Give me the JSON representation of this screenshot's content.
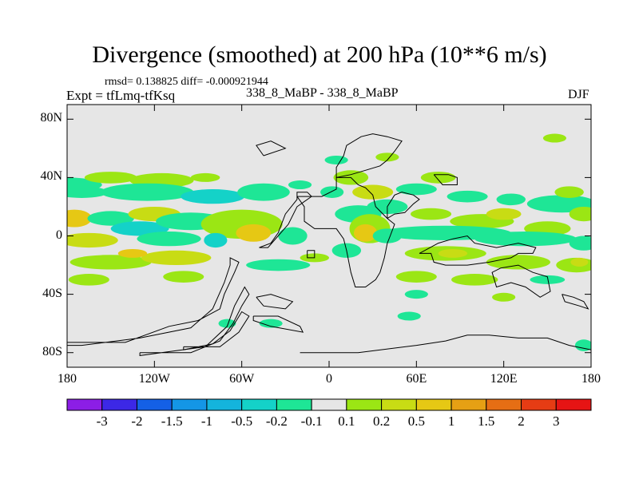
{
  "title": "Divergence (smoothed) at 200 hPa (10**6 m/s)",
  "stats_text": "rmsd= 0.138825 diff= -0.000921944",
  "expt_text": "Expt = tfLmq-tfKsq",
  "center_text": "338_8_MaBP - 338_8_MaBP",
  "season": "DJF",
  "map": {
    "projection": "cylindrical equidistant",
    "lon_range": [
      -180,
      180
    ],
    "lat_range": [
      -90,
      90
    ],
    "lat_ticks": [
      {
        "value": 80,
        "label": "80N"
      },
      {
        "value": 40,
        "label": "40N"
      },
      {
        "value": 0,
        "label": "0"
      },
      {
        "value": -40,
        "label": "40S"
      },
      {
        "value": -80,
        "label": "80S"
      }
    ],
    "lon_ticks": [
      {
        "value": -180,
        "label": "180"
      },
      {
        "value": -120,
        "label": "120W"
      },
      {
        "value": -60,
        "label": "60W"
      },
      {
        "value": 0,
        "label": "0"
      },
      {
        "value": 60,
        "label": "60E"
      },
      {
        "value": 120,
        "label": "120E"
      },
      {
        "value": 180,
        "label": "180"
      }
    ],
    "background_color": "#e6e6e6",
    "coastline_color": "#000000"
  },
  "colorbar": {
    "colors": [
      "#8c1ee6",
      "#3c28e6",
      "#1460e6",
      "#1496e6",
      "#14b4dc",
      "#14d2c8",
      "#1ee696",
      "#e6e6e6",
      "#9be614",
      "#c8dc14",
      "#e6c814",
      "#e6a014",
      "#e66e14",
      "#e63c14",
      "#e61414"
    ],
    "labels": [
      "-3",
      "-2",
      "-1.5",
      "-1",
      "-0.5",
      "-0.2",
      "-0.1",
      "0.1",
      "0.2",
      "0.5",
      "1",
      "1.5",
      "2",
      "3"
    ]
  },
  "blobs": [
    {
      "lon": -180,
      "lat": 35,
      "rx": 24,
      "ry": 5,
      "level": -1
    },
    {
      "lon": -150,
      "lat": 40,
      "rx": 18,
      "ry": 4,
      "level": 1
    },
    {
      "lon": -115,
      "lat": 38,
      "rx": 22,
      "ry": 5,
      "level": 1
    },
    {
      "lon": -85,
      "lat": 40,
      "rx": 10,
      "ry": 3,
      "level": 1
    },
    {
      "lon": -170,
      "lat": 30,
      "rx": 18,
      "ry": 4,
      "level": -1
    },
    {
      "lon": -125,
      "lat": 30,
      "rx": 32,
      "ry": 6,
      "level": -1
    },
    {
      "lon": -80,
      "lat": 27,
      "rx": 22,
      "ry": 5,
      "level": -2
    },
    {
      "lon": -45,
      "lat": 30,
      "rx": 18,
      "ry": 6,
      "level": -1
    },
    {
      "lon": -20,
      "lat": 35,
      "rx": 8,
      "ry": 3,
      "level": -1
    },
    {
      "lon": -175,
      "lat": 12,
      "rx": 12,
      "ry": 6,
      "level": 3
    },
    {
      "lon": -150,
      "lat": 12,
      "rx": 16,
      "ry": 5,
      "level": -1
    },
    {
      "lon": -120,
      "lat": 15,
      "rx": 18,
      "ry": 5,
      "level": 2
    },
    {
      "lon": -130,
      "lat": 5,
      "rx": 20,
      "ry": 5,
      "level": -2
    },
    {
      "lon": -95,
      "lat": 10,
      "rx": 24,
      "ry": 6,
      "level": -1
    },
    {
      "lon": -60,
      "lat": 8,
      "rx": 28,
      "ry": 10,
      "level": 1
    },
    {
      "lon": -52,
      "lat": 2,
      "rx": 12,
      "ry": 6,
      "level": 3
    },
    {
      "lon": -25,
      "lat": 0,
      "rx": 10,
      "ry": 6,
      "level": -1
    },
    {
      "lon": -165,
      "lat": -3,
      "rx": 20,
      "ry": 5,
      "level": 2
    },
    {
      "lon": -110,
      "lat": -2,
      "rx": 22,
      "ry": 5,
      "level": -1
    },
    {
      "lon": -78,
      "lat": -3,
      "rx": 8,
      "ry": 5,
      "level": -2
    },
    {
      "lon": -150,
      "lat": -18,
      "rx": 28,
      "ry": 5,
      "level": 1
    },
    {
      "lon": -105,
      "lat": -15,
      "rx": 24,
      "ry": 5,
      "level": 2
    },
    {
      "lon": -135,
      "lat": -12,
      "rx": 10,
      "ry": 3,
      "level": 3
    },
    {
      "lon": -165,
      "lat": -30,
      "rx": 14,
      "ry": 4,
      "level": 1
    },
    {
      "lon": -100,
      "lat": -28,
      "rx": 14,
      "ry": 4,
      "level": 1
    },
    {
      "lon": -35,
      "lat": -20,
      "rx": 22,
      "ry": 4,
      "level": -1
    },
    {
      "lon": -10,
      "lat": -15,
      "rx": 10,
      "ry": 3,
      "level": 1
    },
    {
      "lon": 5,
      "lat": 52,
      "rx": 8,
      "ry": 3,
      "level": -1
    },
    {
      "lon": 40,
      "lat": 54,
      "rx": 8,
      "ry": 3,
      "level": 1
    },
    {
      "lon": 15,
      "lat": 40,
      "rx": 12,
      "ry": 5,
      "level": 1
    },
    {
      "lon": 2,
      "lat": 30,
      "rx": 8,
      "ry": 4,
      "level": -1
    },
    {
      "lon": 30,
      "lat": 30,
      "rx": 14,
      "ry": 5,
      "level": 2
    },
    {
      "lon": 40,
      "lat": 20,
      "rx": 14,
      "ry": 5,
      "level": -1
    },
    {
      "lon": 20,
      "lat": 15,
      "rx": 16,
      "ry": 6,
      "level": -1
    },
    {
      "lon": 28,
      "lat": 5,
      "rx": 14,
      "ry": 10,
      "level": 1
    },
    {
      "lon": 25,
      "lat": 2,
      "rx": 8,
      "ry": 6,
      "level": 3
    },
    {
      "lon": 40,
      "lat": 0,
      "rx": 10,
      "ry": 5,
      "level": -1
    },
    {
      "lon": 12,
      "lat": -10,
      "rx": 10,
      "ry": 5,
      "level": -1
    },
    {
      "lon": 60,
      "lat": 32,
      "rx": 14,
      "ry": 4,
      "level": -1
    },
    {
      "lon": 75,
      "lat": 40,
      "rx": 12,
      "ry": 4,
      "level": 1
    },
    {
      "lon": 95,
      "lat": 27,
      "rx": 14,
      "ry": 4,
      "level": -1
    },
    {
      "lon": 125,
      "lat": 25,
      "rx": 10,
      "ry": 4,
      "level": -1
    },
    {
      "lon": 160,
      "lat": 22,
      "rx": 24,
      "ry": 6,
      "level": -1
    },
    {
      "lon": 165,
      "lat": 30,
      "rx": 10,
      "ry": 4,
      "level": 1
    },
    {
      "lon": 155,
      "lat": 67,
      "rx": 8,
      "ry": 3,
      "level": 1
    },
    {
      "lon": 70,
      "lat": 15,
      "rx": 14,
      "ry": 4,
      "level": 1
    },
    {
      "lon": 105,
      "lat": 10,
      "rx": 22,
      "ry": 5,
      "level": 1
    },
    {
      "lon": 120,
      "lat": 15,
      "rx": 12,
      "ry": 4,
      "level": 2
    },
    {
      "lon": 150,
      "lat": 5,
      "rx": 16,
      "ry": 5,
      "level": 1
    },
    {
      "lon": 175,
      "lat": 15,
      "rx": 10,
      "ry": 5,
      "level": 1
    },
    {
      "lon": 80,
      "lat": 2,
      "rx": 45,
      "ry": 5,
      "level": -1
    },
    {
      "lon": 135,
      "lat": -2,
      "rx": 35,
      "ry": 5,
      "level": -1
    },
    {
      "lon": 175,
      "lat": -5,
      "rx": 10,
      "ry": 5,
      "level": -1
    },
    {
      "lon": 80,
      "lat": -12,
      "rx": 28,
      "ry": 5,
      "level": 1
    },
    {
      "lon": 85,
      "lat": -12,
      "rx": 10,
      "ry": 3,
      "level": 2
    },
    {
      "lon": 130,
      "lat": -18,
      "rx": 22,
      "ry": 5,
      "level": 1
    },
    {
      "lon": 170,
      "lat": -20,
      "rx": 14,
      "ry": 5,
      "level": 1
    },
    {
      "lon": 172,
      "lat": -18,
      "rx": 6,
      "ry": 3,
      "level": 2
    },
    {
      "lon": 60,
      "lat": -28,
      "rx": 14,
      "ry": 4,
      "level": 1
    },
    {
      "lon": 100,
      "lat": -30,
      "rx": 16,
      "ry": 4,
      "level": 1
    },
    {
      "lon": 150,
      "lat": -30,
      "rx": 12,
      "ry": 3,
      "level": -1
    },
    {
      "lon": 60,
      "lat": -40,
      "rx": 8,
      "ry": 3,
      "level": -1
    },
    {
      "lon": 120,
      "lat": -42,
      "rx": 8,
      "ry": 3,
      "level": 1
    },
    {
      "lon": 55,
      "lat": -55,
      "rx": 8,
      "ry": 3,
      "level": -1
    },
    {
      "lon": -70,
      "lat": -60,
      "rx": 6,
      "ry": 3,
      "level": -1
    },
    {
      "lon": -40,
      "lat": -60,
      "rx": 8,
      "ry": 3,
      "level": -1
    },
    {
      "lon": 175,
      "lat": -75,
      "rx": 6,
      "ry": 4,
      "level": -1
    }
  ],
  "coastlines": [
    [
      [
        -180,
        -73
      ],
      [
        -140,
        -73
      ],
      [
        -110,
        -62
      ],
      [
        -90,
        -58
      ],
      [
        -75,
        -50
      ],
      [
        -72,
        -40
      ],
      [
        -65,
        -25
      ],
      [
        -62,
        -18
      ],
      [
        -68,
        -15
      ],
      [
        -68,
        -20
      ],
      [
        -72,
        -32
      ],
      [
        -80,
        -50
      ],
      [
        -95,
        -63
      ],
      [
        -130,
        -70
      ],
      [
        -170,
        -75
      ],
      [
        -180,
        -75
      ]
    ],
    [
      [
        -130,
        -80
      ],
      [
        -95,
        -80
      ],
      [
        -75,
        -72
      ],
      [
        -66,
        -60
      ],
      [
        -60,
        -48
      ],
      [
        -55,
        -40
      ],
      [
        -58,
        -35
      ],
      [
        -65,
        -48
      ],
      [
        -70,
        -62
      ],
      [
        -85,
        -76
      ],
      [
        -130,
        -82
      ],
      [
        -130,
        -80
      ]
    ],
    [
      [
        -100,
        -76
      ],
      [
        -75,
        -76
      ],
      [
        -62,
        -66
      ],
      [
        -55,
        -55
      ],
      [
        -60,
        -52
      ],
      [
        -68,
        -65
      ],
      [
        -80,
        -74
      ],
      [
        -100,
        -78
      ],
      [
        -100,
        -76
      ]
    ],
    [
      [
        -52,
        -55
      ],
      [
        -35,
        -55
      ],
      [
        -20,
        -62
      ],
      [
        -18,
        -66
      ],
      [
        -40,
        -62
      ],
      [
        -52,
        -58
      ],
      [
        -52,
        -55
      ]
    ],
    [
      [
        -50,
        -42
      ],
      [
        -40,
        -40
      ],
      [
        -25,
        -45
      ],
      [
        -30,
        -50
      ],
      [
        -45,
        -48
      ],
      [
        -50,
        -42
      ]
    ],
    [
      [
        -48,
        -8
      ],
      [
        -40,
        -5
      ],
      [
        -35,
        2
      ],
      [
        -30,
        15
      ],
      [
        -22,
        25
      ],
      [
        -22,
        30
      ],
      [
        -15,
        30
      ],
      [
        -12,
        27
      ],
      [
        -22,
        20
      ],
      [
        -28,
        8
      ],
      [
        -35,
        0
      ],
      [
        -42,
        -8
      ],
      [
        -48,
        -8
      ]
    ],
    [
      [
        -22,
        27
      ],
      [
        -5,
        27
      ],
      [
        5,
        32
      ],
      [
        5,
        40
      ],
      [
        15,
        40
      ],
      [
        20,
        35
      ],
      [
        25,
        33
      ],
      [
        30,
        28
      ],
      [
        32,
        20
      ],
      [
        40,
        12
      ],
      [
        45,
        8
      ],
      [
        42,
        0
      ],
      [
        40,
        -5
      ],
      [
        38,
        -15
      ],
      [
        35,
        -25
      ],
      [
        32,
        -30
      ],
      [
        25,
        -35
      ],
      [
        18,
        -35
      ],
      [
        15,
        -25
      ],
      [
        12,
        -10
      ],
      [
        10,
        -2
      ],
      [
        5,
        5
      ],
      [
        0,
        5
      ],
      [
        -10,
        5
      ],
      [
        -17,
        10
      ],
      [
        -17,
        20
      ],
      [
        -22,
        27
      ]
    ],
    [
      [
        5,
        40
      ],
      [
        5,
        47
      ],
      [
        10,
        55
      ],
      [
        12,
        62
      ],
      [
        22,
        68
      ],
      [
        30,
        70
      ],
      [
        40,
        68
      ],
      [
        50,
        65
      ],
      [
        45,
        58
      ],
      [
        40,
        52
      ],
      [
        35,
        48
      ],
      [
        25,
        45
      ],
      [
        15,
        42
      ],
      [
        5,
        40
      ]
    ],
    [
      [
        40,
        12
      ],
      [
        45,
        15
      ],
      [
        52,
        16
      ],
      [
        58,
        22
      ],
      [
        62,
        25
      ],
      [
        58,
        28
      ],
      [
        50,
        30
      ],
      [
        45,
        28
      ],
      [
        40,
        20
      ],
      [
        40,
        12
      ]
    ],
    [
      [
        -20,
        -80
      ],
      [
        20,
        -80
      ],
      [
        60,
        -75
      ],
      [
        80,
        -72
      ],
      [
        95,
        -68
      ],
      [
        110,
        -68
      ],
      [
        130,
        -70
      ],
      [
        150,
        -70
      ],
      [
        165,
        -75
      ],
      [
        180,
        -78
      ]
    ],
    [
      [
        62,
        -12
      ],
      [
        70,
        -12
      ],
      [
        72,
        -18
      ],
      [
        80,
        -20
      ],
      [
        95,
        -20
      ],
      [
        110,
        -18
      ],
      [
        125,
        -15
      ],
      [
        130,
        -12
      ],
      [
        140,
        -12
      ],
      [
        142,
        -8
      ],
      [
        130,
        -5
      ],
      [
        115,
        -8
      ],
      [
        100,
        -5
      ],
      [
        95,
        0
      ],
      [
        85,
        -2
      ],
      [
        75,
        -5
      ],
      [
        62,
        -12
      ]
    ],
    [
      [
        118,
        -22
      ],
      [
        130,
        -20
      ],
      [
        140,
        -25
      ],
      [
        150,
        -28
      ],
      [
        152,
        -38
      ],
      [
        145,
        -42
      ],
      [
        135,
        -35
      ],
      [
        125,
        -32
      ],
      [
        115,
        -35
      ],
      [
        112,
        -25
      ],
      [
        118,
        -22
      ]
    ],
    [
      [
        160,
        -40
      ],
      [
        168,
        -42
      ],
      [
        175,
        -45
      ],
      [
        178,
        -50
      ],
      [
        172,
        -48
      ],
      [
        162,
        -45
      ],
      [
        160,
        -40
      ]
    ],
    [
      [
        -15,
        -10
      ],
      [
        -10,
        -10
      ],
      [
        -10,
        -15
      ],
      [
        -15,
        -15
      ],
      [
        -15,
        -10
      ]
    ],
    [
      [
        72,
        42
      ],
      [
        82,
        42
      ],
      [
        88,
        40
      ],
      [
        88,
        35
      ],
      [
        78,
        35
      ],
      [
        72,
        42
      ]
    ],
    [
      [
        -45,
        55
      ],
      [
        -30,
        60
      ],
      [
        -40,
        65
      ],
      [
        -50,
        62
      ],
      [
        -45,
        55
      ]
    ]
  ]
}
